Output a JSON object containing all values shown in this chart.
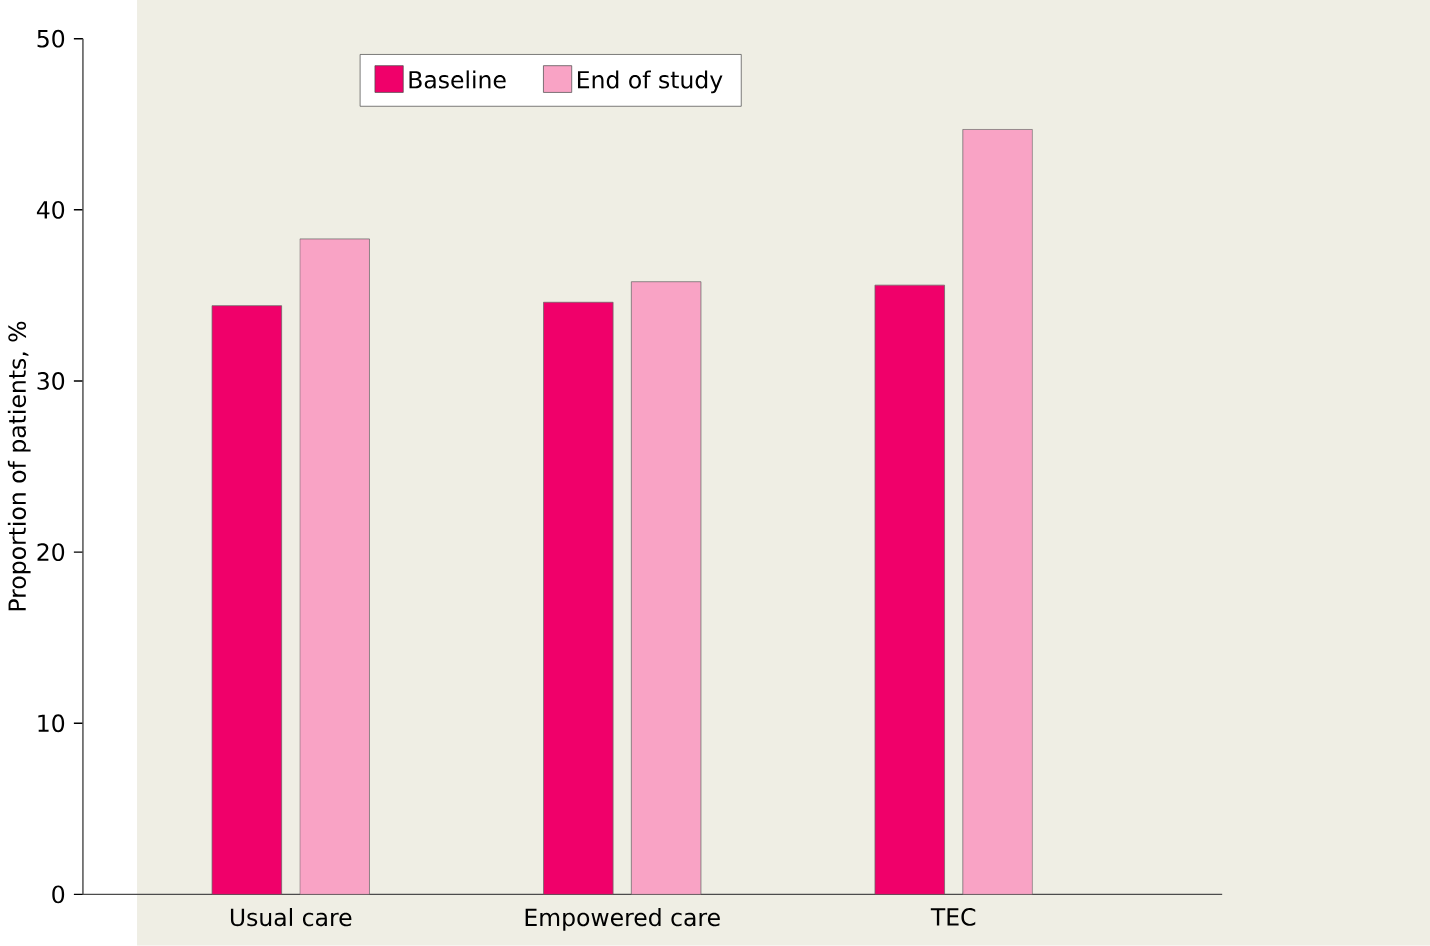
{
  "chart_data": {
    "type": "bar",
    "ylabel": "Proportion of patients, %",
    "categories": [
      "Usual care",
      "Empowered care",
      "TEC"
    ],
    "series": [
      {
        "name": "Baseline",
        "color": "#f0006a",
        "values": [
          34.4,
          34.6,
          35.6
        ]
      },
      {
        "name": "End of study",
        "color": "#f9a3c5",
        "values": [
          38.3,
          35.8,
          44.7
        ]
      }
    ],
    "ylim": [
      0,
      50
    ],
    "yticks": [
      0,
      10,
      20,
      30,
      40,
      50
    ],
    "legend": "top",
    "grid": false
  }
}
